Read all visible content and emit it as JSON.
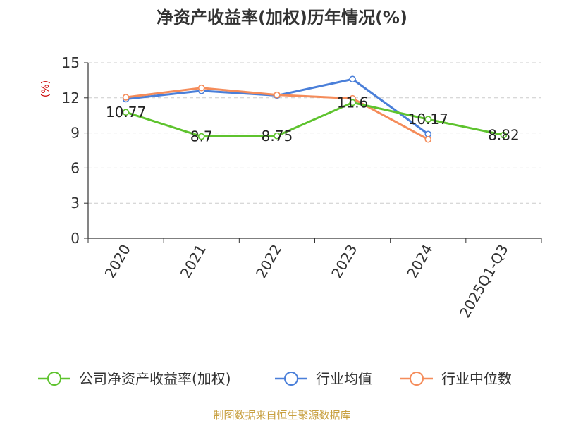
{
  "chart_data": {
    "type": "line",
    "title": "净资产收益率(加权)历年情况(%)",
    "ylabel": "(%)",
    "xlabel": "",
    "categories": [
      "2020",
      "2021",
      "2022",
      "2023",
      "2024",
      "2025Q1-Q3"
    ],
    "ylim": [
      0,
      15
    ],
    "yticks": [
      "0",
      "3",
      "6",
      "9",
      "12",
      "15"
    ],
    "grid": true,
    "legend_position": "bottom",
    "series": [
      {
        "name": "公司净资产收益率(加权)",
        "color": "#5ec32e",
        "values": [
          10.77,
          8.7,
          8.75,
          11.6,
          10.17,
          8.82
        ],
        "labels": [
          "10.77",
          "8.7",
          "8.75",
          "11.6",
          "10.17",
          "8.82"
        ]
      },
      {
        "name": "行业均值",
        "color": "#4a7fd9",
        "values": [
          11.9,
          12.6,
          12.2,
          13.6,
          8.9,
          null
        ]
      },
      {
        "name": "行业中位数",
        "color": "#f58c5a",
        "values": [
          12.05,
          12.85,
          12.25,
          11.95,
          8.45,
          null
        ]
      }
    ]
  },
  "colors": {
    "axis": "#333333",
    "grid": "#cccccc",
    "ylabel": "#cc0000",
    "source": "#c8a040"
  },
  "source": "制图数据来自恒生聚源数据库"
}
